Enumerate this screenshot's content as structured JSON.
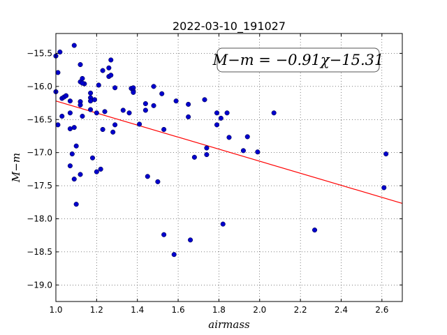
{
  "chart_data": {
    "type": "scatter",
    "title": "2022-03-10_191027",
    "xlabel": "airmass",
    "ylabel": "M−m",
    "xlim": [
      1.0,
      2.7
    ],
    "ylim": [
      -19.25,
      -15.2
    ],
    "y_inverted": true,
    "grid": true,
    "x_ticks": [
      1.0,
      1.2,
      1.4,
      1.6,
      1.8,
      2.0,
      2.2,
      2.4,
      2.6
    ],
    "x_tick_labels": [
      "1.0",
      "1.2",
      "1.4",
      "1.6",
      "1.8",
      "2.0",
      "2.2",
      "2.4",
      "2.6"
    ],
    "y_ticks": [
      -15.5,
      -16.0,
      -16.5,
      -17.0,
      -17.5,
      -18.0,
      -18.5,
      -19.0
    ],
    "y_tick_labels": [
      "−15.5",
      "−16.0",
      "−16.5",
      "−17.0",
      "−17.5",
      "−18.0",
      "−18.5",
      "−19.0"
    ],
    "fit": {
      "slope": -0.91,
      "intercept": -15.31,
      "color": "#ff0000"
    },
    "annotation": "M−m = −0.91χ−15.31",
    "point_color": "#0000cc",
    "points": [
      [
        1.0,
        -15.54
      ],
      [
        1.02,
        -15.48
      ],
      [
        1.09,
        -15.38
      ],
      [
        1.01,
        -15.79
      ],
      [
        1.0,
        -16.08
      ],
      [
        1.03,
        -16.18
      ],
      [
        1.04,
        -16.16
      ],
      [
        1.05,
        -16.14
      ],
      [
        1.07,
        -16.22
      ],
      [
        1.01,
        -16.58
      ],
      [
        1.03,
        -16.45
      ],
      [
        1.07,
        -16.4
      ],
      [
        1.07,
        -16.64
      ],
      [
        1.09,
        -16.62
      ],
      [
        1.08,
        -17.02
      ],
      [
        1.1,
        -16.9
      ],
      [
        1.07,
        -17.2
      ],
      [
        1.09,
        -17.4
      ],
      [
        1.1,
        -17.78
      ],
      [
        1.12,
        -15.67
      ],
      [
        1.12,
        -15.93
      ],
      [
        1.13,
        -15.88
      ],
      [
        1.14,
        -15.96
      ],
      [
        1.13,
        -15.95
      ],
      [
        1.12,
        -16.23
      ],
      [
        1.12,
        -16.28
      ],
      [
        1.13,
        -16.45
      ],
      [
        1.12,
        -17.33
      ],
      [
        1.17,
        -16.1
      ],
      [
        1.17,
        -16.17
      ],
      [
        1.17,
        -16.22
      ],
      [
        1.19,
        -16.2
      ],
      [
        1.17,
        -16.35
      ],
      [
        1.2,
        -16.4
      ],
      [
        1.18,
        -17.08
      ],
      [
        1.2,
        -17.29
      ],
      [
        1.22,
        -17.25
      ],
      [
        1.21,
        -15.98
      ],
      [
        1.23,
        -15.76
      ],
      [
        1.26,
        -15.72
      ],
      [
        1.27,
        -15.6
      ],
      [
        1.26,
        -15.85
      ],
      [
        1.27,
        -15.83
      ],
      [
        1.24,
        -16.38
      ],
      [
        1.23,
        -16.65
      ],
      [
        1.28,
        -16.69
      ],
      [
        1.29,
        -16.58
      ],
      [
        1.29,
        -16.02
      ],
      [
        1.33,
        -16.36
      ],
      [
        1.36,
        -16.4
      ],
      [
        1.37,
        -16.03
      ],
      [
        1.38,
        -16.02
      ],
      [
        1.38,
        -16.07
      ],
      [
        1.38,
        -16.09
      ],
      [
        1.41,
        -16.57
      ],
      [
        1.44,
        -16.36
      ],
      [
        1.44,
        -16.26
      ],
      [
        1.48,
        -16.0
      ],
      [
        1.48,
        -16.29
      ],
      [
        1.52,
        -16.11
      ],
      [
        1.45,
        -17.36
      ],
      [
        1.5,
        -17.44
      ],
      [
        1.53,
        -16.65
      ],
      [
        1.53,
        -18.24
      ],
      [
        1.58,
        -18.54
      ],
      [
        1.59,
        -16.22
      ],
      [
        1.65,
        -16.27
      ],
      [
        1.65,
        -16.46
      ],
      [
        1.68,
        -17.07
      ],
      [
        1.66,
        -18.32
      ],
      [
        1.73,
        -16.2
      ],
      [
        1.74,
        -16.93
      ],
      [
        1.74,
        -17.03
      ],
      [
        1.79,
        -16.4
      ],
      [
        1.79,
        -16.58
      ],
      [
        1.81,
        -16.48
      ],
      [
        1.84,
        -16.4
      ],
      [
        1.85,
        -16.77
      ],
      [
        1.82,
        -18.08
      ],
      [
        1.92,
        -16.97
      ],
      [
        1.94,
        -16.76
      ],
      [
        1.99,
        -16.99
      ],
      [
        2.07,
        -16.4
      ],
      [
        2.27,
        -18.17
      ],
      [
        2.61,
        -17.53
      ],
      [
        2.62,
        -17.02
      ]
    ]
  }
}
